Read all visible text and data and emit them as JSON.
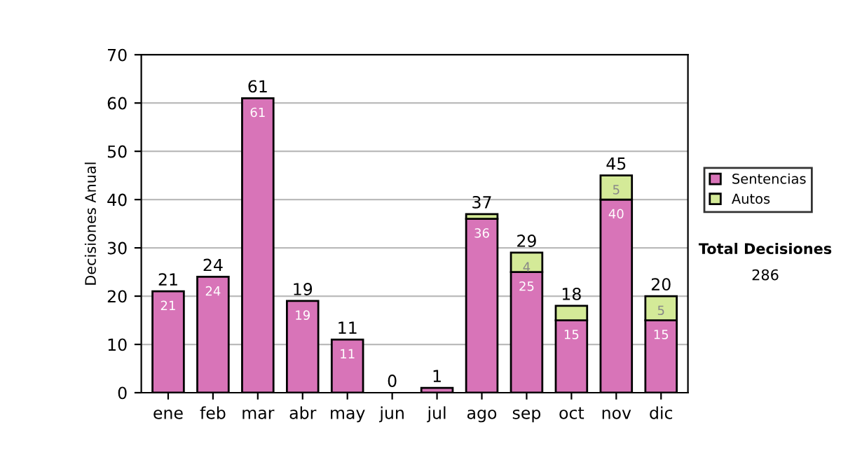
{
  "chart_data": {
    "type": "bar",
    "stacked": true,
    "ylabel": "Decisiones Anual",
    "categories": [
      "ene",
      "feb",
      "mar",
      "abr",
      "may",
      "jun",
      "jul",
      "ago",
      "sep",
      "oct",
      "nov",
      "dic"
    ],
    "series": [
      {
        "name": "Sentencias",
        "color": "#d874b8",
        "values": [
          21,
          24,
          61,
          19,
          11,
          null,
          1,
          36,
          25,
          15,
          40,
          15
        ],
        "value_labels": [
          "21",
          "24",
          "61",
          "19",
          "11",
          null,
          null,
          "36",
          "25",
          "15",
          "40",
          "15"
        ]
      },
      {
        "name": "Autos",
        "color": "#d4ea98",
        "values": [
          null,
          null,
          null,
          null,
          null,
          null,
          null,
          1,
          4,
          3,
          5,
          5
        ],
        "value_labels": [
          null,
          null,
          null,
          null,
          null,
          null,
          null,
          null,
          "4",
          null,
          "5",
          "5"
        ]
      }
    ],
    "totals": [
      "21",
      "24",
      "61",
      "19",
      "11",
      "0",
      "1",
      "37",
      "29",
      "18",
      "45",
      "20"
    ],
    "ylim": [
      0,
      70
    ],
    "yticks": [
      0,
      10,
      20,
      30,
      40,
      50,
      60,
      70
    ],
    "grid": "y",
    "legend": "right",
    "annotations": [
      "Total Decisiones",
      "286"
    ]
  }
}
